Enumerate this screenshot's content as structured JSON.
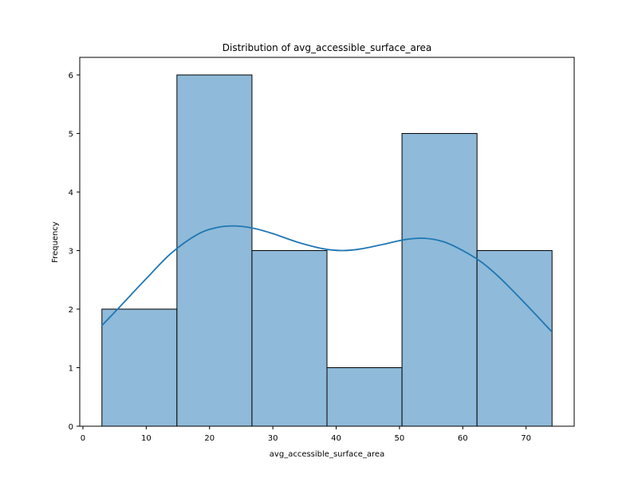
{
  "chart_data": {
    "type": "bar",
    "title": "Distribution of avg_accessible_surface_area",
    "xlabel": "avg_accessible_surface_area",
    "ylabel": "Frequency",
    "xlim": [
      -0.5,
      77.6
    ],
    "ylim": [
      0,
      6.3
    ],
    "x_ticks": [
      0,
      10,
      20,
      30,
      40,
      50,
      60,
      70
    ],
    "y_ticks": [
      0,
      1,
      2,
      3,
      4,
      5,
      6
    ],
    "bins": [
      {
        "start": 3.0,
        "end": 14.85,
        "count": 2
      },
      {
        "start": 14.85,
        "end": 26.7,
        "count": 6
      },
      {
        "start": 26.7,
        "end": 38.55,
        "count": 3
      },
      {
        "start": 38.55,
        "end": 50.4,
        "count": 1
      },
      {
        "start": 50.4,
        "end": 62.25,
        "count": 5
      },
      {
        "start": 62.25,
        "end": 74.1,
        "count": 3
      }
    ],
    "kde_curve": {
      "x": [
        3.0,
        6.0,
        10.0,
        14.0,
        18.0,
        21.0,
        24.0,
        27.0,
        30.0,
        34.0,
        38.0,
        41.0,
        44.0,
        48.0,
        51.0,
        54.0,
        57.0,
        60.0,
        63.0,
        66.0,
        70.0,
        74.0
      ],
      "y": [
        1.72,
        2.06,
        2.52,
        2.96,
        3.27,
        3.39,
        3.42,
        3.38,
        3.29,
        3.14,
        3.03,
        3.0,
        3.03,
        3.12,
        3.19,
        3.21,
        3.15,
        3.0,
        2.8,
        2.52,
        2.08,
        1.62
      ]
    },
    "grid": false,
    "colors": {
      "bar_fill": "#8fbad9",
      "bar_edge": "#000000",
      "kde_line": "#1f77b4"
    }
  }
}
